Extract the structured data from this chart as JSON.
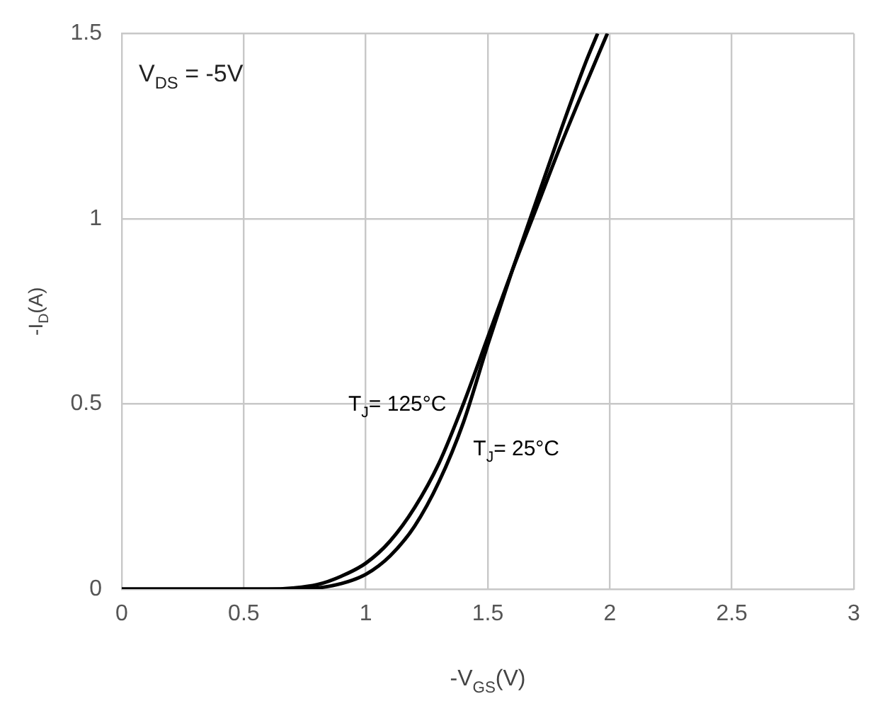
{
  "chart_data": {
    "type": "line",
    "xlabel": "-V$_{GS}$(V)",
    "ylabel": "-I$_{D}$(A)",
    "annotations": [
      "V$_{DS}$ = -5V"
    ],
    "series": [
      {
        "name": "T$_{J}$= 125°C",
        "color": "#000000",
        "x": [
          0,
          0.6,
          0.7,
          0.8,
          0.9,
          1.0,
          1.1,
          1.2,
          1.3,
          1.4,
          1.5,
          1.6,
          1.7,
          1.8,
          1.9,
          1.99
        ],
        "values": [
          0,
          0,
          0.003,
          0.012,
          0.035,
          0.07,
          0.13,
          0.22,
          0.34,
          0.5,
          0.68,
          0.86,
          1.03,
          1.2,
          1.36,
          1.5
        ]
      },
      {
        "name": "T$_{J}$= 25°C",
        "color": "#000000",
        "x": [
          0,
          0.7,
          0.8,
          0.9,
          1.0,
          1.1,
          1.2,
          1.3,
          1.4,
          1.5,
          1.6,
          1.7,
          1.8,
          1.9,
          1.95
        ],
        "values": [
          0,
          0,
          0.003,
          0.015,
          0.04,
          0.09,
          0.17,
          0.29,
          0.45,
          0.66,
          0.86,
          1.05,
          1.24,
          1.42,
          1.5
        ]
      }
    ],
    "xlim": [
      0,
      3
    ],
    "xticks": [
      0,
      0.5,
      1,
      1.5,
      2,
      2.5,
      3
    ],
    "ylim": [
      0,
      1.5
    ],
    "yticks": [
      0,
      0.5,
      1,
      1.5
    ],
    "grid": true,
    "legend": false,
    "marker": "none",
    "line_style": "solid"
  }
}
